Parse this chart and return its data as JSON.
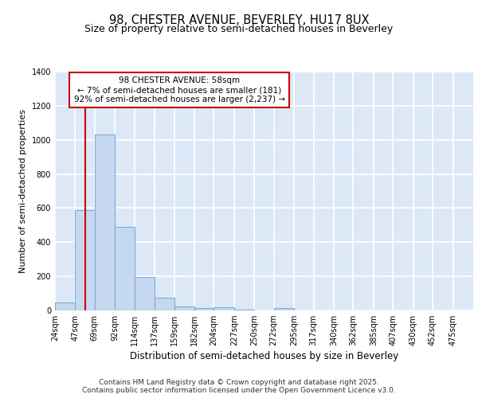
{
  "title1": "98, CHESTER AVENUE, BEVERLEY, HU17 8UX",
  "title2": "Size of property relative to semi-detached houses in Beverley",
  "xlabel": "Distribution of semi-detached houses by size in Beverley",
  "ylabel": "Number of semi-detached properties",
  "categories": [
    "24sqm",
    "47sqm",
    "69sqm",
    "92sqm",
    "114sqm",
    "137sqm",
    "159sqm",
    "182sqm",
    "204sqm",
    "227sqm",
    "250sqm",
    "272sqm",
    "295sqm",
    "317sqm",
    "340sqm",
    "362sqm",
    "385sqm",
    "407sqm",
    "430sqm",
    "452sqm",
    "475sqm"
  ],
  "bin_edges": [
    24,
    47,
    69,
    92,
    114,
    137,
    159,
    182,
    204,
    227,
    250,
    272,
    295,
    317,
    340,
    362,
    385,
    407,
    430,
    452,
    475
  ],
  "bin_width": 23,
  "values": [
    45,
    590,
    1030,
    490,
    195,
    75,
    25,
    15,
    20,
    5,
    0,
    15,
    0,
    0,
    0,
    0,
    0,
    0,
    0,
    0
  ],
  "bar_color": "#c5d8f0",
  "bar_edge_color": "#7aaed6",
  "background_color": "#dce8f5",
  "grid_color": "#ffffff",
  "property_line_x": 58,
  "property_line_color": "#cc0000",
  "annotation_text": "98 CHESTER AVENUE: 58sqm\n← 7% of semi-detached houses are smaller (181)\n92% of semi-detached houses are larger (2,237) →",
  "annotation_box_color": "#cc0000",
  "ylim": [
    0,
    1400
  ],
  "yticks": [
    0,
    200,
    400,
    600,
    800,
    1000,
    1200,
    1400
  ],
  "footer1": "Contains HM Land Registry data © Crown copyright and database right 2025.",
  "footer2": "Contains public sector information licensed under the Open Government Licence v3.0.",
  "title1_fontsize": 10.5,
  "title2_fontsize": 9,
  "ylabel_fontsize": 8,
  "xlabel_fontsize": 8.5,
  "tick_fontsize": 7,
  "annotation_fontsize": 7.5,
  "footer_fontsize": 6.5
}
